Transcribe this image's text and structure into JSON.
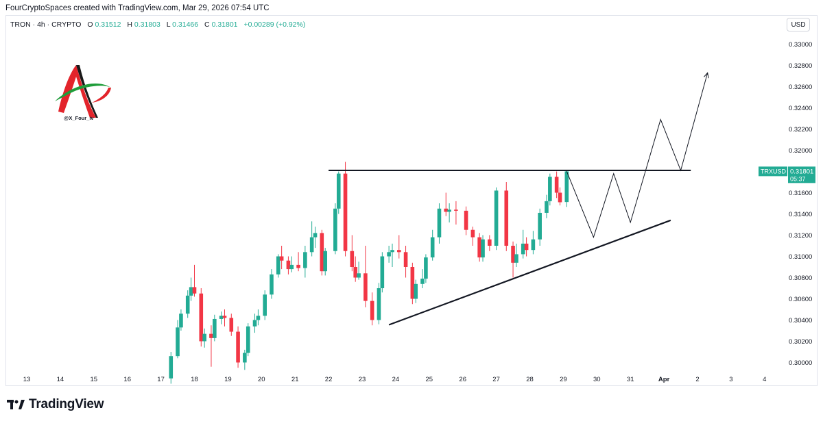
{
  "header": {
    "caption": "FourCryptoSpaces created with TradingView.com, Mar 29, 2026 07:54 UTC"
  },
  "legend": {
    "symbol": "TRON · 4h · CRYPTO",
    "o_label": "O",
    "o": "0.31512",
    "h_label": "H",
    "h": "0.31803",
    "l_label": "L",
    "l": "0.31466",
    "c_label": "C",
    "c": "0.31801",
    "change": "+0.00289 (+0.92%)"
  },
  "currency_button": "USD",
  "watermark": {
    "handle": "@X_Four_iv"
  },
  "price_tag": {
    "ticker": "TRXUSD",
    "price": "0.31801",
    "countdown": "05:37"
  },
  "branding": {
    "name": "TradingView"
  },
  "colors": {
    "up": "#22ab94",
    "down": "#f23645",
    "line": "#131722",
    "tag": "#22ab94"
  },
  "chart_data": {
    "type": "candlestick",
    "timeframe": "4h",
    "ylim": [
      0.2985,
      0.3315
    ],
    "y_ticks": [
      "0.30000",
      "0.30200",
      "0.30400",
      "0.30600",
      "0.30800",
      "0.31000",
      "0.31200",
      "0.31400",
      "0.31600",
      "0.31800",
      "0.32000",
      "0.32200",
      "0.32400",
      "0.32600",
      "0.32800",
      "0.33000"
    ],
    "x_ticks": [
      {
        "label": "13",
        "day": 13
      },
      {
        "label": "14",
        "day": 14
      },
      {
        "label": "15",
        "day": 15
      },
      {
        "label": "16",
        "day": 16
      },
      {
        "label": "17",
        "day": 17
      },
      {
        "label": "18",
        "day": 18
      },
      {
        "label": "19",
        "day": 19
      },
      {
        "label": "20",
        "day": 20
      },
      {
        "label": "21",
        "day": 21
      },
      {
        "label": "22",
        "day": 22
      },
      {
        "label": "23",
        "day": 23
      },
      {
        "label": "24",
        "day": 24
      },
      {
        "label": "25",
        "day": 25
      },
      {
        "label": "26",
        "day": 26
      },
      {
        "label": "27",
        "day": 27
      },
      {
        "label": "28",
        "day": 28
      },
      {
        "label": "29",
        "day": 29
      },
      {
        "label": "30",
        "day": 30
      },
      {
        "label": "31",
        "day": 31
      },
      {
        "label": "Apr",
        "day": 32
      },
      {
        "label": "2",
        "day": 33
      },
      {
        "label": "3",
        "day": 34
      },
      {
        "label": "4",
        "day": 35
      }
    ],
    "candles": [
      {
        "day": 17.3,
        "o": 0.2985,
        "h": 0.301,
        "l": 0.298,
        "c": 0.3006
      },
      {
        "day": 17.5,
        "o": 0.3006,
        "h": 0.304,
        "l": 0.3004,
        "c": 0.3033
      },
      {
        "day": 17.6,
        "o": 0.3033,
        "h": 0.305,
        "l": 0.303,
        "c": 0.3046
      },
      {
        "day": 17.8,
        "o": 0.3046,
        "h": 0.3068,
        "l": 0.3042,
        "c": 0.3063
      },
      {
        "day": 17.9,
        "o": 0.3063,
        "h": 0.308,
        "l": 0.3058,
        "c": 0.3071
      },
      {
        "day": 18.0,
        "o": 0.3071,
        "h": 0.3092,
        "l": 0.3062,
        "c": 0.3065
      },
      {
        "day": 18.2,
        "o": 0.3065,
        "h": 0.307,
        "l": 0.3015,
        "c": 0.302
      },
      {
        "day": 18.3,
        "o": 0.302,
        "h": 0.3032,
        "l": 0.3014,
        "c": 0.3027
      },
      {
        "day": 18.5,
        "o": 0.3027,
        "h": 0.3035,
        "l": 0.2996,
        "c": 0.3023
      },
      {
        "day": 18.6,
        "o": 0.3023,
        "h": 0.3045,
        "l": 0.302,
        "c": 0.3041
      },
      {
        "day": 18.8,
        "o": 0.3041,
        "h": 0.3048,
        "l": 0.3036,
        "c": 0.3044
      },
      {
        "day": 18.9,
        "o": 0.3044,
        "h": 0.305,
        "l": 0.3034,
        "c": 0.3042
      },
      {
        "day": 19.1,
        "o": 0.3042,
        "h": 0.3046,
        "l": 0.3025,
        "c": 0.3029
      },
      {
        "day": 19.3,
        "o": 0.3029,
        "h": 0.3034,
        "l": 0.2995,
        "c": 0.3
      },
      {
        "day": 19.5,
        "o": 0.3,
        "h": 0.3012,
        "l": 0.2993,
        "c": 0.3009
      },
      {
        "day": 19.6,
        "o": 0.3009,
        "h": 0.3037,
        "l": 0.3006,
        "c": 0.3034
      },
      {
        "day": 19.8,
        "o": 0.3034,
        "h": 0.3046,
        "l": 0.3028,
        "c": 0.304
      },
      {
        "day": 19.9,
        "o": 0.304,
        "h": 0.305,
        "l": 0.3035,
        "c": 0.3044
      },
      {
        "day": 20.1,
        "o": 0.3044,
        "h": 0.3068,
        "l": 0.304,
        "c": 0.3064
      },
      {
        "day": 20.3,
        "o": 0.3064,
        "h": 0.3088,
        "l": 0.306,
        "c": 0.3083
      },
      {
        "day": 20.5,
        "o": 0.3083,
        "h": 0.3102,
        "l": 0.308,
        "c": 0.31
      },
      {
        "day": 20.6,
        "o": 0.31,
        "h": 0.311,
        "l": 0.3088,
        "c": 0.3096
      },
      {
        "day": 20.8,
        "o": 0.3096,
        "h": 0.31,
        "l": 0.3083,
        "c": 0.3088
      },
      {
        "day": 20.9,
        "o": 0.3088,
        "h": 0.31,
        "l": 0.3085,
        "c": 0.3092
      },
      {
        "day": 21.1,
        "o": 0.3092,
        "h": 0.3104,
        "l": 0.3086,
        "c": 0.3089
      },
      {
        "day": 21.3,
        "o": 0.3089,
        "h": 0.311,
        "l": 0.308,
        "c": 0.3104
      },
      {
        "day": 21.5,
        "o": 0.3104,
        "h": 0.3133,
        "l": 0.31,
        "c": 0.3118
      },
      {
        "day": 21.6,
        "o": 0.3118,
        "h": 0.3128,
        "l": 0.3108,
        "c": 0.3122
      },
      {
        "day": 21.8,
        "o": 0.3122,
        "h": 0.3125,
        "l": 0.3082,
        "c": 0.3086
      },
      {
        "day": 21.9,
        "o": 0.3086,
        "h": 0.3108,
        "l": 0.3082,
        "c": 0.3105
      },
      {
        "day": 22.2,
        "o": 0.3105,
        "h": 0.315,
        "l": 0.3102,
        "c": 0.3145
      },
      {
        "day": 22.3,
        "o": 0.3145,
        "h": 0.318,
        "l": 0.314,
        "c": 0.3178
      },
      {
        "day": 22.5,
        "o": 0.3178,
        "h": 0.3189,
        "l": 0.31,
        "c": 0.3105
      },
      {
        "day": 22.7,
        "o": 0.3105,
        "h": 0.312,
        "l": 0.3086,
        "c": 0.309
      },
      {
        "day": 22.8,
        "o": 0.309,
        "h": 0.31,
        "l": 0.3076,
        "c": 0.308
      },
      {
        "day": 22.9,
        "o": 0.308,
        "h": 0.3095,
        "l": 0.3078,
        "c": 0.3084
      },
      {
        "day": 23.1,
        "o": 0.3084,
        "h": 0.311,
        "l": 0.3052,
        "c": 0.3058
      },
      {
        "day": 23.3,
        "o": 0.3058,
        "h": 0.3066,
        "l": 0.3035,
        "c": 0.304
      },
      {
        "day": 23.5,
        "o": 0.304,
        "h": 0.3075,
        "l": 0.3036,
        "c": 0.307
      },
      {
        "day": 23.6,
        "o": 0.307,
        "h": 0.3104,
        "l": 0.3066,
        "c": 0.31
      },
      {
        "day": 23.8,
        "o": 0.31,
        "h": 0.311,
        "l": 0.3094,
        "c": 0.3104
      },
      {
        "day": 23.9,
        "o": 0.3104,
        "h": 0.3112,
        "l": 0.309,
        "c": 0.3106
      },
      {
        "day": 24.1,
        "o": 0.3106,
        "h": 0.312,
        "l": 0.3098,
        "c": 0.3104
      },
      {
        "day": 24.3,
        "o": 0.3104,
        "h": 0.311,
        "l": 0.308,
        "c": 0.309
      },
      {
        "day": 24.5,
        "o": 0.309,
        "h": 0.3094,
        "l": 0.3055,
        "c": 0.306
      },
      {
        "day": 24.6,
        "o": 0.306,
        "h": 0.3078,
        "l": 0.3056,
        "c": 0.3074
      },
      {
        "day": 24.8,
        "o": 0.3074,
        "h": 0.3088,
        "l": 0.307,
        "c": 0.3079
      },
      {
        "day": 24.9,
        "o": 0.3079,
        "h": 0.3102,
        "l": 0.3075,
        "c": 0.3099
      },
      {
        "day": 25.1,
        "o": 0.3099,
        "h": 0.3125,
        "l": 0.3096,
        "c": 0.3118
      },
      {
        "day": 25.3,
        "o": 0.3118,
        "h": 0.315,
        "l": 0.3112,
        "c": 0.3145
      },
      {
        "day": 25.5,
        "o": 0.3145,
        "h": 0.316,
        "l": 0.3138,
        "c": 0.3142
      },
      {
        "day": 25.6,
        "o": 0.3142,
        "h": 0.315,
        "l": 0.3132,
        "c": 0.3144
      },
      {
        "day": 25.8,
        "o": 0.3144,
        "h": 0.3152,
        "l": 0.313,
        "c": 0.3143
      },
      {
        "day": 26.1,
        "o": 0.3143,
        "h": 0.3147,
        "l": 0.312,
        "c": 0.3125
      },
      {
        "day": 26.3,
        "o": 0.3125,
        "h": 0.3128,
        "l": 0.311,
        "c": 0.3118
      },
      {
        "day": 26.5,
        "o": 0.3118,
        "h": 0.3122,
        "l": 0.3095,
        "c": 0.3099
      },
      {
        "day": 26.6,
        "o": 0.3099,
        "h": 0.312,
        "l": 0.3095,
        "c": 0.3116
      },
      {
        "day": 26.8,
        "o": 0.3116,
        "h": 0.312,
        "l": 0.3105,
        "c": 0.311
      },
      {
        "day": 27.0,
        "o": 0.311,
        "h": 0.3165,
        "l": 0.3106,
        "c": 0.3162
      },
      {
        "day": 27.3,
        "o": 0.3162,
        "h": 0.317,
        "l": 0.3105,
        "c": 0.311
      },
      {
        "day": 27.5,
        "o": 0.311,
        "h": 0.3114,
        "l": 0.308,
        "c": 0.3094
      },
      {
        "day": 27.6,
        "o": 0.3094,
        "h": 0.3112,
        "l": 0.309,
        "c": 0.3102
      },
      {
        "day": 27.8,
        "o": 0.3102,
        "h": 0.3125,
        "l": 0.3098,
        "c": 0.3112
      },
      {
        "day": 27.9,
        "o": 0.3112,
        "h": 0.3118,
        "l": 0.31,
        "c": 0.3106
      },
      {
        "day": 28.1,
        "o": 0.3106,
        "h": 0.3124,
        "l": 0.3102,
        "c": 0.3116
      },
      {
        "day": 28.3,
        "o": 0.3116,
        "h": 0.3145,
        "l": 0.311,
        "c": 0.3141
      },
      {
        "day": 28.5,
        "o": 0.3141,
        "h": 0.3158,
        "l": 0.3136,
        "c": 0.3152
      },
      {
        "day": 28.6,
        "o": 0.3152,
        "h": 0.3178,
        "l": 0.3148,
        "c": 0.3175
      },
      {
        "day": 28.8,
        "o": 0.3175,
        "h": 0.318,
        "l": 0.3155,
        "c": 0.316
      },
      {
        "day": 28.9,
        "o": 0.316,
        "h": 0.3165,
        "l": 0.3148,
        "c": 0.3151
      },
      {
        "day": 29.1,
        "o": 0.31512,
        "h": 0.31803,
        "l": 0.31466,
        "c": 0.31801
      }
    ],
    "drawings": [
      {
        "type": "resistance",
        "points": [
          [
            22.0,
            0.3181
          ],
          [
            29.6,
            0.3181
          ],
          [
            32.8,
            0.3181
          ]
        ]
      },
      {
        "type": "support",
        "points": [
          [
            23.8,
            0.30355
          ],
          [
            32.2,
            0.3134
          ]
        ]
      },
      {
        "type": "projection",
        "points": [
          [
            29.1,
            0.31801
          ],
          [
            29.9,
            0.3118
          ],
          [
            30.5,
            0.3178
          ],
          [
            31.0,
            0.3132
          ],
          [
            31.9,
            0.3229
          ],
          [
            32.5,
            0.3181
          ],
          [
            33.3,
            0.3273
          ]
        ]
      }
    ]
  }
}
